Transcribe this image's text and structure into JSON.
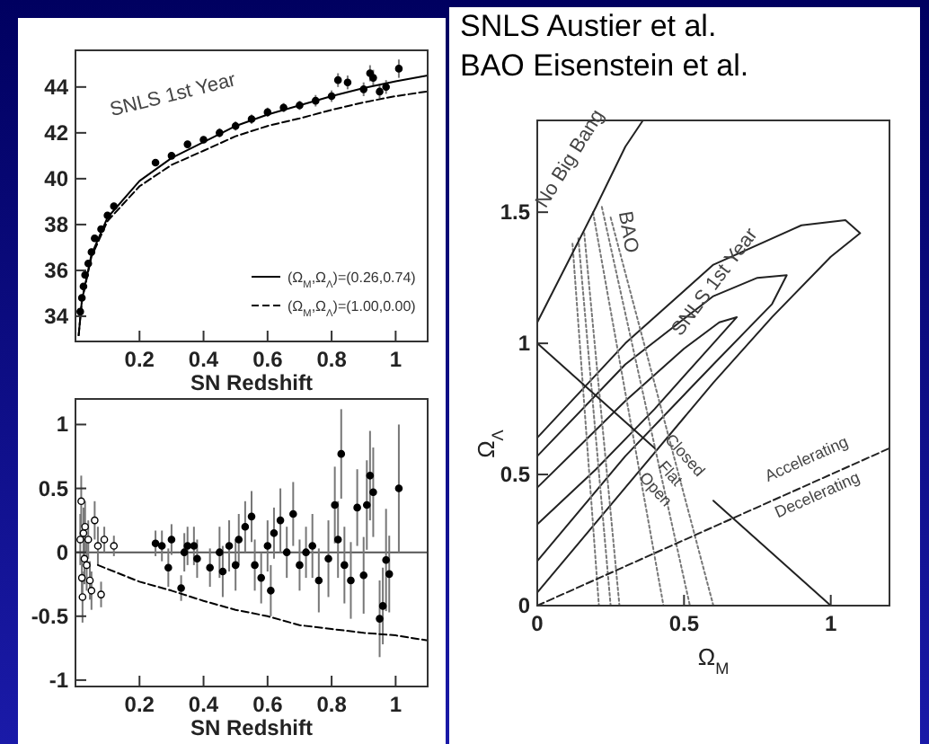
{
  "chart_data": [
    {
      "type": "scatter",
      "xlabel": "SN Redshift",
      "xlim": [
        0,
        1.1
      ],
      "xticks": [
        0.2,
        0.4,
        0.6,
        0.8,
        1
      ],
      "ylim": [
        32.9,
        45.6
      ],
      "yticks": [
        34,
        36,
        38,
        40,
        42,
        44
      ],
      "marker": "circle",
      "legend": "bottom right",
      "annotations": [
        "SNLS 1st Year"
      ],
      "series": [
        {
          "color": "#000000",
          "x": [
            0.015,
            0.02,
            0.025,
            0.03,
            0.04,
            0.05,
            0.06,
            0.08,
            0.1,
            0.12,
            0.25,
            0.3,
            0.35,
            0.4,
            0.45,
            0.5,
            0.55,
            0.6,
            0.65,
            0.7,
            0.75,
            0.8,
            0.82,
            0.85,
            0.9,
            0.92,
            0.93,
            0.95,
            0.97,
            1.01
          ],
          "values": [
            34.2,
            34.8,
            35.3,
            35.8,
            36.3,
            36.8,
            37.4,
            37.8,
            38.4,
            38.8,
            40.7,
            41.0,
            41.5,
            41.7,
            42.0,
            42.3,
            42.6,
            42.9,
            43.1,
            43.2,
            43.4,
            43.6,
            44.3,
            44.2,
            43.9,
            44.6,
            44.4,
            43.8,
            44.0,
            44.8
          ],
          "errors": [
            0.15,
            0.15,
            0.15,
            0.15,
            0.15,
            0.15,
            0.15,
            0.15,
            0.15,
            0.15,
            0.15,
            0.15,
            0.15,
            0.15,
            0.2,
            0.2,
            0.2,
            0.2,
            0.2,
            0.2,
            0.25,
            0.25,
            0.3,
            0.3,
            0.3,
            0.35,
            0.35,
            0.3,
            0.3,
            0.4
          ]
        },
        {
          "type": "line",
          "name": "(Ω$_{M}$,Ω$_{Λ}$)=(0.26,0.74)",
          "color": "#000000",
          "line_style": "solid",
          "marker": "none",
          "x": [
            0.01,
            0.02,
            0.05,
            0.1,
            0.2,
            0.3,
            0.4,
            0.5,
            0.6,
            0.7,
            0.8,
            0.9,
            1.0,
            1.1
          ],
          "values": [
            33.17,
            34.69,
            36.7,
            38.3,
            39.9,
            40.9,
            41.6,
            42.3,
            42.8,
            43.2,
            43.6,
            43.95,
            44.25,
            44.5
          ]
        },
        {
          "type": "line",
          "name": "(Ω$_{M}$,Ω$_{Λ}$)=(1.00,0.00)",
          "color": "#000000",
          "line_style": "dashed",
          "marker": "none",
          "x": [
            0.01,
            0.02,
            0.05,
            0.1,
            0.2,
            0.3,
            0.4,
            0.5,
            0.6,
            0.7,
            0.8,
            0.9,
            1.0,
            1.1
          ],
          "values": [
            33.17,
            34.67,
            36.6,
            38.15,
            39.67,
            40.6,
            41.22,
            41.85,
            42.3,
            42.63,
            43.0,
            43.33,
            43.6,
            43.81
          ]
        }
      ]
    },
    {
      "type": "scatter",
      "xlabel": "SN Redshift",
      "xlim": [
        0,
        1.1
      ],
      "xticks": [
        0.2,
        0.4,
        0.6,
        0.8,
        1
      ],
      "ylim": [
        -1.05,
        1.2
      ],
      "yticks": [
        -1,
        -0.5,
        0,
        0.5,
        1
      ],
      "marker": "circle",
      "ref_lines": [
        {
          "axis": "y",
          "value": 0,
          "color": "#555555"
        }
      ],
      "series": [
        {
          "color": "#ffffff",
          "x": [
            0.015,
            0.018,
            0.02,
            0.022,
            0.025,
            0.028,
            0.03,
            0.035,
            0.04,
            0.045,
            0.05,
            0.06,
            0.07,
            0.08,
            0.09,
            0.12
          ],
          "values": [
            0.1,
            0.4,
            -0.2,
            -0.35,
            0.15,
            -0.05,
            0.2,
            -0.1,
            0.1,
            -0.22,
            -0.3,
            0.25,
            0.05,
            -0.33,
            0.1,
            0.05
          ],
          "errors": [
            0.2,
            0.2,
            0.15,
            0.2,
            0.2,
            0.2,
            0.2,
            0.2,
            0.15,
            0.15,
            0.15,
            0.15,
            0.15,
            0.1,
            0.1,
            0.08
          ]
        },
        {
          "color": "#000000",
          "x": [
            0.25,
            0.27,
            0.29,
            0.3,
            0.33,
            0.34,
            0.35,
            0.37,
            0.38,
            0.42,
            0.45,
            0.46,
            0.48,
            0.5,
            0.51,
            0.53,
            0.55,
            0.56,
            0.58,
            0.6,
            0.61,
            0.62,
            0.64,
            0.66,
            0.68,
            0.7,
            0.72,
            0.74,
            0.76,
            0.79,
            0.81,
            0.82,
            0.83,
            0.84,
            0.86,
            0.88,
            0.9,
            0.91,
            0.92,
            0.93,
            0.95,
            0.96,
            0.97,
            0.98,
            1.01
          ],
          "values": [
            0.07,
            0.05,
            -0.12,
            0.1,
            -0.28,
            0.0,
            0.05,
            0.05,
            -0.05,
            -0.12,
            0.0,
            -0.15,
            0.05,
            -0.1,
            0.1,
            0.2,
            0.28,
            -0.1,
            -0.2,
            0.05,
            -0.3,
            0.15,
            0.25,
            0.0,
            0.3,
            -0.1,
            0.0,
            0.05,
            -0.22,
            -0.05,
            0.37,
            0.1,
            0.77,
            -0.1,
            -0.22,
            0.35,
            -0.18,
            0.37,
            0.6,
            0.47,
            -0.52,
            -0.42,
            -0.06,
            -0.17,
            0.5
          ],
          "errors": [
            0.1,
            0.12,
            0.15,
            0.12,
            0.1,
            0.15,
            0.15,
            0.15,
            0.15,
            0.15,
            0.2,
            0.2,
            0.2,
            0.2,
            0.2,
            0.2,
            0.2,
            0.2,
            0.2,
            0.2,
            0.2,
            0.2,
            0.25,
            0.2,
            0.25,
            0.2,
            0.2,
            0.25,
            0.25,
            0.3,
            0.3,
            0.3,
            0.35,
            0.3,
            0.3,
            0.3,
            0.3,
            0.35,
            0.35,
            0.35,
            0.3,
            0.3,
            0.4,
            0.3,
            0.5
          ]
        },
        {
          "type": "line",
          "color": "#000000",
          "line_style": "dashed",
          "marker": "none",
          "x": [
            0.07,
            0.2,
            0.3,
            0.4,
            0.5,
            0.6,
            0.7,
            0.8,
            0.9,
            1.0,
            1.1
          ],
          "values": [
            -0.1,
            -0.23,
            -0.3,
            -0.38,
            -0.45,
            -0.5,
            -0.57,
            -0.6,
            -0.63,
            -0.65,
            -0.69
          ]
        }
      ]
    },
    {
      "type": "line",
      "title": "SNLS Austier et al.",
      "subtitle": "BAO Eisenstein et al.",
      "xlabel": "Ω$_{M}$",
      "ylabel": "Ω$_{Λ}$",
      "xlim": [
        0,
        1.2
      ],
      "xticks": [
        0,
        0.5,
        1
      ],
      "ylim": [
        0,
        1.85
      ],
      "yticks": [
        0,
        0.5,
        1,
        1.5
      ],
      "annotations": [
        "No Big Bang",
        {
          "text": "BAO",
          "x": 0.29,
          "y": 1.42
        },
        {
          "text": "SNLS 1st Year",
          "x": 0.62,
          "y": 1.22
        },
        {
          "text": "Closed",
          "x": 0.49,
          "y": 0.56
        },
        {
          "text": "Flat",
          "x": 0.44,
          "y": 0.49
        },
        {
          "text": "Open",
          "x": 0.39,
          "y": 0.43
        },
        "Accelerating",
        "Decelerating"
      ],
      "series": [
        {
          "color": "#222222",
          "line_style": "solid",
          "x": [
            0,
            0.3,
            0.6,
            0.9,
            1.05,
            1.1,
            1.0,
            0.8,
            0.6,
            0.3,
            0
          ],
          "values": [
            0.64,
            1.0,
            1.3,
            1.45,
            1.47,
            1.42,
            1.33,
            1.1,
            0.85,
            0.45,
            0.05
          ]
        },
        {
          "color": "#222222",
          "line_style": "solid",
          "x": [
            0,
            0.3,
            0.6,
            0.75,
            0.85,
            0.8,
            0.6,
            0.3,
            0
          ],
          "values": [
            0.57,
            0.92,
            1.18,
            1.25,
            1.26,
            1.15,
            0.92,
            0.57,
            0.17
          ]
        },
        {
          "color": "#222222",
          "line_style": "solid",
          "x": [
            0,
            0.3,
            0.5,
            0.62,
            0.68,
            0.6,
            0.4,
            0.2,
            0
          ],
          "values": [
            0.45,
            0.78,
            0.98,
            1.08,
            1.1,
            1.0,
            0.75,
            0.52,
            0.31
          ]
        },
        {
          "color": "#777777",
          "line_style": "dotted",
          "x": [
            0.12,
            0.21
          ],
          "values": [
            1.38,
            0
          ]
        },
        {
          "color": "#777777",
          "line_style": "dotted",
          "x": [
            0.14,
            0.25
          ],
          "values": [
            1.4,
            0
          ]
        },
        {
          "color": "#777777",
          "line_style": "dotted",
          "x": [
            0.16,
            0.28
          ],
          "values": [
            1.42,
            0
          ]
        },
        {
          "color": "#777777",
          "line_style": "dotted",
          "x": [
            0.19,
            0.43
          ],
          "values": [
            1.5,
            0
          ]
        },
        {
          "color": "#777777",
          "line_style": "dotted",
          "x": [
            0.22,
            0.52
          ],
          "values": [
            1.52,
            0
          ]
        },
        {
          "color": "#777777",
          "line_style": "dotted",
          "x": [
            0.25,
            0.6
          ],
          "values": [
            1.48,
            0
          ]
        },
        {
          "color": "#222222",
          "line_style": "solid",
          "x": [
            0,
            0.4,
            0.5,
            0.6,
            1
          ],
          "values": [
            1,
            0.6,
            null,
            0.4,
            0
          ]
        },
        {
          "color": "#222222",
          "line_style": "solid",
          "x": [
            0,
            0.1,
            0.2,
            0.3,
            0.36
          ],
          "values": [
            1.08,
            1.3,
            1.52,
            1.75,
            1.85
          ]
        },
        {
          "color": "#222222",
          "line_style": "dashed",
          "x": [
            0,
            1.2
          ],
          "values": [
            0,
            0.6
          ]
        }
      ]
    }
  ]
}
